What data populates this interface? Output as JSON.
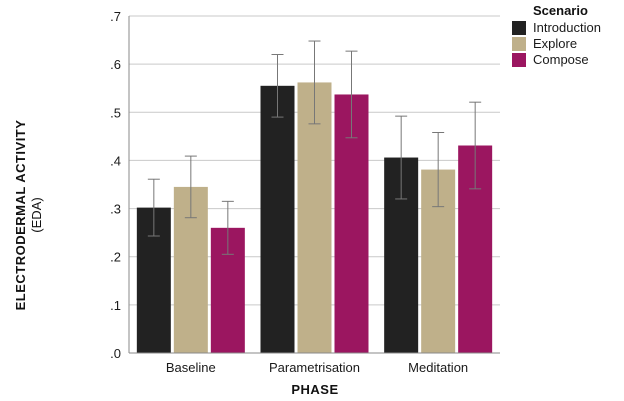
{
  "chart_data": {
    "type": "bar",
    "categories": [
      "Baseline",
      "Parametrisation",
      "Meditation"
    ],
    "series": [
      {
        "name": "Introduction",
        "color": "#222222",
        "values": [
          0.302,
          0.555,
          0.406
        ],
        "error": [
          0.059,
          0.065,
          0.086
        ]
      },
      {
        "name": "Explore",
        "color": "#bfb08a",
        "values": [
          0.345,
          0.562,
          0.381
        ],
        "error": [
          0.064,
          0.086,
          0.077
        ]
      },
      {
        "name": "Compose",
        "color": "#9b1660",
        "values": [
          0.26,
          0.537,
          0.431
        ],
        "error": [
          0.055,
          0.09,
          0.09
        ]
      }
    ],
    "title": "",
    "xlabel": "PHASE",
    "ylabel": "ELECTRODERMAL ACTIVITY",
    "ylabel_sub": "(EDA)",
    "ylim": [
      0,
      0.7
    ],
    "yticks": [
      0,
      0.1,
      0.2,
      0.3,
      0.4,
      0.5,
      0.6,
      0.7
    ],
    "ytick_labels": [
      ".0",
      ".1",
      ".2",
      ".3",
      ".4",
      ".5",
      ".6",
      ".7"
    ],
    "grid": true,
    "legend": {
      "title": "Scenario",
      "placement": "top-right"
    }
  }
}
